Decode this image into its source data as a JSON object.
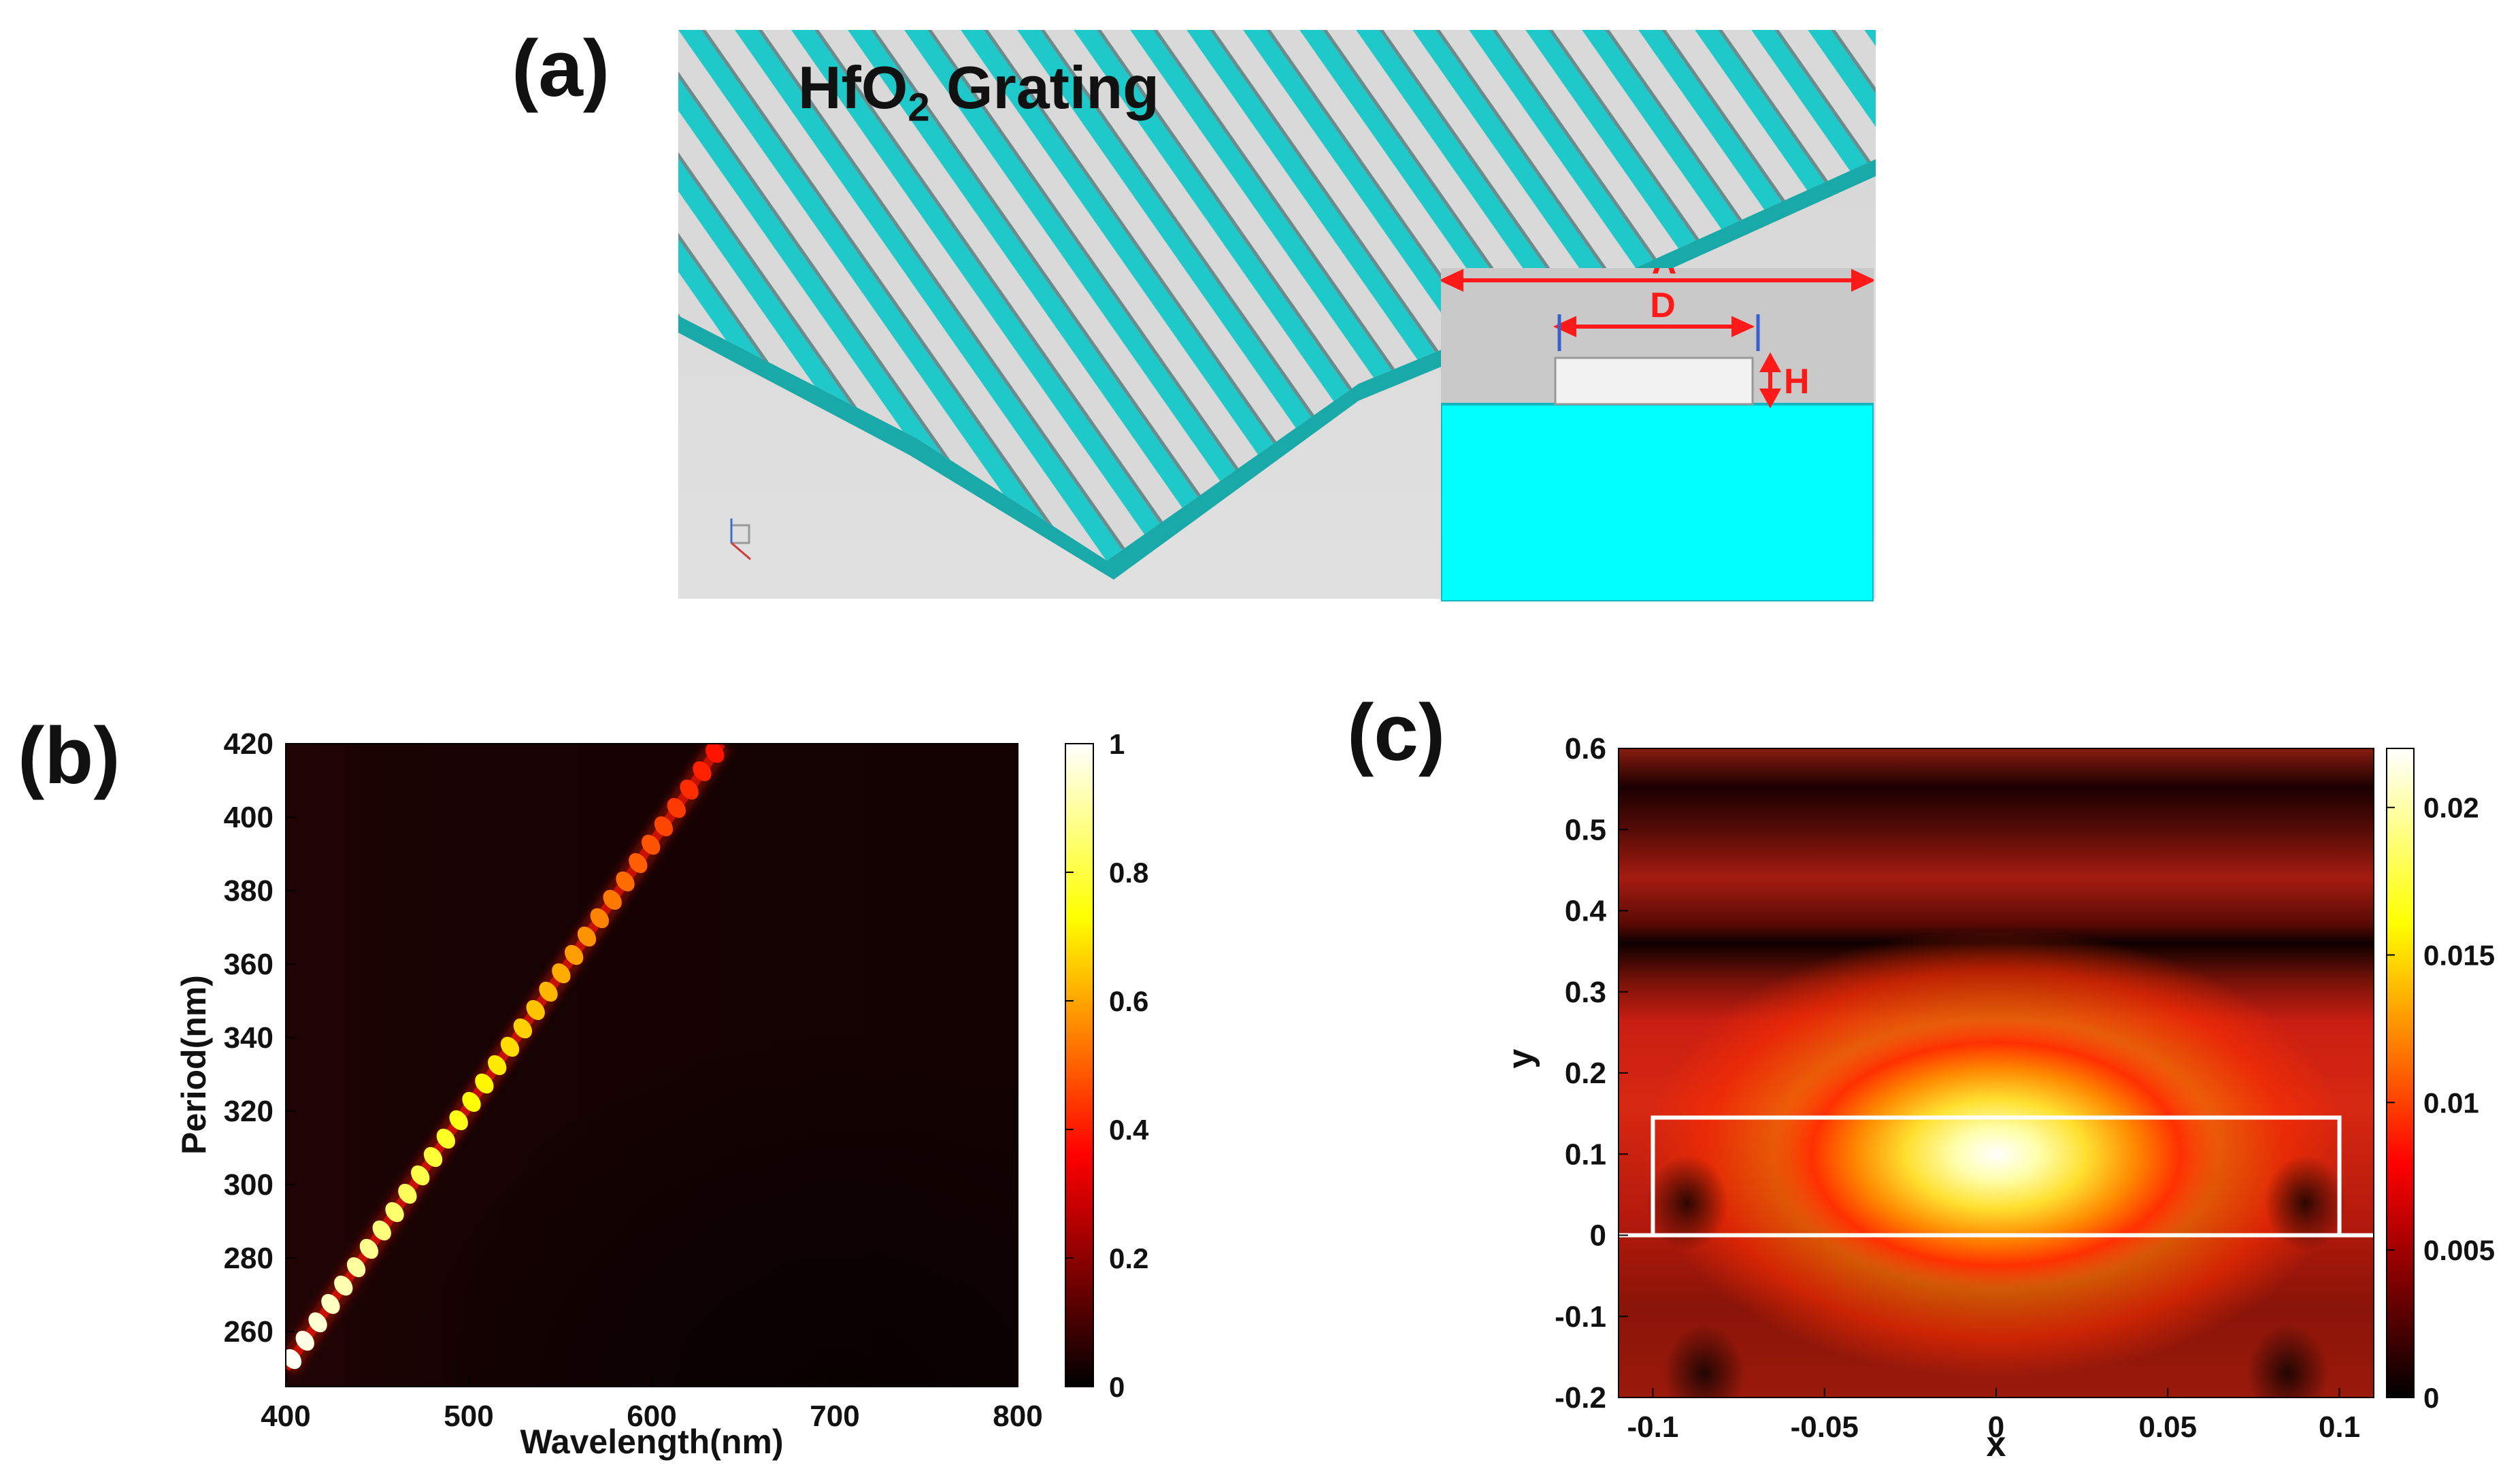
{
  "figure": {
    "panel_a": {
      "label": "(a)",
      "title_main": "HfO",
      "title_sub": "2",
      "title_rest": " Grating",
      "inset_labels": {
        "period": "Λ",
        "width": "D",
        "height": "H"
      },
      "colors": {
        "grating_teal": "#1fc9c9",
        "substrate_cyan": "#00ffff",
        "ridge_gray": "#d9d9d9"
      }
    },
    "panel_b": {
      "label": "(b)"
    },
    "panel_c": {
      "label": "(c)"
    }
  },
  "chart_data": [
    {
      "id": "b",
      "type": "heatmap",
      "xlabel": "Wavelength(nm)",
      "ylabel": "Period(nm)",
      "xlim": [
        400,
        800
      ],
      "ylim": [
        245,
        420
      ],
      "xticks": [
        400,
        500,
        600,
        700,
        800
      ],
      "yticks": [
        260,
        280,
        300,
        320,
        340,
        360,
        380,
        400,
        420
      ],
      "colorbar": {
        "min": 0,
        "max": 1,
        "ticks": [
          "0",
          "0.2",
          "0.4",
          "0.6",
          "0.8",
          "1"
        ],
        "colormap": "hot"
      },
      "resonance_line": {
        "start": {
          "wavelength": 400,
          "period": 250
        },
        "end": {
          "wavelength": 638,
          "period": 420
        },
        "peak_value": 1.0
      }
    },
    {
      "id": "c",
      "type": "heatmap",
      "xlabel": "x",
      "ylabel": "y",
      "xlim": [
        -0.11,
        0.11
      ],
      "ylim": [
        -0.2,
        0.6
      ],
      "xticks": [
        "-0.1",
        "-0.05",
        "0",
        "0.05",
        "0.1"
      ],
      "yticks": [
        "-0.2",
        "-0.1",
        "0",
        "0.1",
        "0.2",
        "0.3",
        "0.4",
        "0.5",
        "0.6"
      ],
      "colorbar": {
        "min": 0,
        "max": 0.022,
        "ticks": [
          "0",
          "0.005",
          "0.01",
          "0.015",
          "0.02"
        ],
        "colormap": "hot"
      },
      "field_peak": {
        "x": 0,
        "y": 0.1,
        "value": 0.022
      },
      "grating_outline": {
        "x": [
          -0.1,
          0.1
        ],
        "y": [
          0,
          0.145
        ]
      }
    }
  ]
}
